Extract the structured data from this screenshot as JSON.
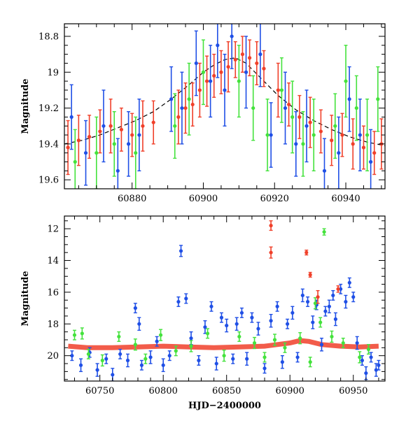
{
  "colors": {
    "blue": "#1f4fe6",
    "green": "#44e23c",
    "red": "#f0402a",
    "black": "#000000"
  },
  "chart_data": [
    {
      "type": "scatter",
      "panel": "top",
      "title": "",
      "xlabel": "",
      "ylabel": "Magnitude",
      "xlim": [
        60861,
        60951
      ],
      "ylim": [
        19.65,
        18.73
      ],
      "y_inverted": true,
      "x_ticks": [
        60880,
        60900,
        60920,
        60940
      ],
      "y_ticks": [
        18.8,
        19,
        19.2,
        19.4,
        19.6
      ],
      "x_tick_labels": [
        "60880",
        "60900",
        "60920",
        "60940"
      ],
      "y_tick_labels": [
        "18.8",
        "19",
        "19.2",
        "19.4",
        "19.6"
      ],
      "grid": false,
      "series": [
        {
          "color_key": "red",
          "x": [
            60862,
            60865,
            60868,
            60871,
            60874,
            60877,
            60880,
            60883,
            60886,
            60893,
            60895,
            60897,
            60899,
            60901,
            60903,
            60905,
            60907,
            60909,
            60911,
            60913,
            60915,
            60917,
            60921,
            60924,
            60927,
            60930,
            60933,
            60936,
            60939,
            60942,
            60945,
            60948,
            60950
          ],
          "y": [
            19.42,
            19.38,
            19.36,
            19.33,
            19.3,
            19.32,
            19.35,
            19.3,
            19.28,
            19.25,
            19.2,
            19.18,
            19.1,
            19.05,
            19.02,
            19.0,
            18.97,
            18.93,
            18.9,
            18.92,
            18.95,
            18.98,
            19.1,
            19.18,
            19.25,
            19.28,
            19.33,
            19.38,
            19.35,
            19.4,
            19.42,
            19.45,
            19.4
          ],
          "err": [
            0.15,
            0.14,
            0.12,
            0.12,
            0.15,
            0.12,
            0.12,
            0.14,
            0.12,
            0.15,
            0.14,
            0.12,
            0.15,
            0.14,
            0.12,
            0.12,
            0.14,
            0.1,
            0.1,
            0.1,
            0.12,
            0.1,
            0.15,
            0.12,
            0.12,
            0.14,
            0.12,
            0.14,
            0.12,
            0.14,
            0.12,
            0.12,
            0.14
          ]
        },
        {
          "color_key": "blue",
          "x": [
            60863,
            60867,
            60872,
            60876,
            60879,
            60882,
            60891,
            60894,
            60898,
            60902,
            60904,
            60906,
            60908,
            60912,
            60916,
            60919,
            60923,
            60926,
            60929,
            60934,
            60938,
            60941,
            60944,
            60947
          ],
          "y": [
            19.25,
            19.45,
            19.3,
            19.55,
            19.4,
            19.35,
            19.15,
            19.2,
            18.95,
            19.05,
            18.85,
            19.1,
            18.8,
            19.0,
            18.9,
            19.35,
            19.2,
            19.4,
            19.3,
            19.55,
            19.45,
            19.15,
            19.35,
            19.5
          ],
          "err": [
            0.18,
            0.18,
            0.2,
            0.18,
            0.18,
            0.2,
            0.18,
            0.2,
            0.18,
            0.2,
            0.18,
            0.2,
            0.18,
            0.2,
            0.18,
            0.18,
            0.2,
            0.18,
            0.2,
            0.18,
            0.2,
            0.18,
            0.2,
            0.18
          ]
        },
        {
          "color_key": "green",
          "x": [
            60864,
            60870,
            60875,
            60881,
            60892,
            60896,
            60900,
            60910,
            60914,
            60918,
            60922,
            60925,
            60928,
            60931,
            60937,
            60940,
            60943,
            60946,
            60949
          ],
          "y": [
            19.5,
            19.45,
            19.4,
            19.45,
            19.3,
            19.15,
            19.0,
            19.05,
            19.2,
            19.35,
            19.1,
            19.25,
            19.4,
            19.35,
            19.3,
            19.05,
            19.2,
            19.35,
            19.15
          ],
          "err": [
            0.18,
            0.2,
            0.18,
            0.2,
            0.18,
            0.2,
            0.18,
            0.2,
            0.18,
            0.2,
            0.18,
            0.2,
            0.18,
            0.2,
            0.18,
            0.2,
            0.18,
            0.2,
            0.18
          ]
        }
      ],
      "model_curve": {
        "style": "dashed",
        "color_key": "black",
        "x": [
          60861,
          60866,
          60871,
          60876,
          60881,
          60886,
          60891,
          60896,
          60900,
          60903,
          60906,
          60909,
          60912,
          60916,
          60921,
          60926,
          60931,
          60936,
          60941,
          60946,
          60951
        ],
        "y": [
          19.4,
          19.38,
          19.35,
          19.31,
          19.27,
          19.22,
          19.15,
          19.07,
          19.0,
          18.96,
          18.93,
          18.92,
          18.95,
          19.03,
          19.13,
          19.21,
          19.27,
          19.32,
          19.36,
          19.39,
          19.41
        ]
      }
    },
    {
      "type": "scatter",
      "panel": "bottom",
      "title": "",
      "xlabel": "HJD−2400000",
      "ylabel": "Magnitude",
      "xlim": [
        60722,
        60975
      ],
      "ylim": [
        21.6,
        11.2
      ],
      "y_inverted": true,
      "x_ticks": [
        60750,
        60800,
        60850,
        60900,
        60950
      ],
      "y_ticks": [
        12,
        14,
        16,
        18,
        20
      ],
      "x_tick_labels": [
        "60750",
        "60800",
        "60850",
        "60900",
        "60950"
      ],
      "y_tick_labels": [
        "12",
        "14",
        "16",
        "18",
        "20"
      ],
      "grid": false,
      "series": [
        {
          "color_key": "blue",
          "x": [
            60728,
            60735,
            60742,
            60748,
            60755,
            60760,
            60766,
            60772,
            60778,
            60781,
            60783,
            60790,
            60795,
            60800,
            60805,
            60812,
            60814,
            60818,
            60822,
            60828,
            60833,
            60838,
            60842,
            60846,
            60850,
            60855,
            60858,
            60862,
            60866,
            60870,
            60875,
            60880,
            60885,
            60890,
            60894,
            60898,
            60902,
            60906,
            60910,
            60914,
            60918,
            60921,
            60925,
            60928,
            60931,
            60934,
            60936,
            60940,
            60944,
            60947,
            60950,
            60953,
            60957,
            60960,
            60964,
            60968,
            60970
          ],
          "y": [
            20.0,
            20.6,
            19.8,
            20.9,
            20.2,
            21.2,
            19.9,
            20.3,
            17.0,
            18.0,
            20.6,
            20.1,
            19.1,
            20.6,
            20.0,
            16.6,
            13.4,
            16.4,
            18.9,
            20.3,
            18.2,
            16.9,
            20.5,
            17.6,
            18.1,
            20.2,
            18.0,
            17.3,
            20.2,
            17.6,
            18.3,
            20.8,
            17.8,
            16.9,
            20.4,
            18.0,
            17.3,
            20.1,
            16.2,
            16.6,
            17.9,
            16.8,
            19.3,
            17.2,
            16.9,
            16.2,
            17.7,
            15.8,
            16.6,
            15.4,
            16.3,
            19.2,
            20.3,
            21.1,
            20.1,
            20.9,
            20.6
          ],
          "err": [
            0.3,
            0.4,
            0.3,
            0.4,
            0.3,
            0.4,
            0.3,
            0.4,
            0.3,
            0.4,
            0.3,
            0.4,
            0.3,
            0.4,
            0.3,
            0.3,
            0.35,
            0.3,
            0.4,
            0.3,
            0.4,
            0.3,
            0.4,
            0.3,
            0.4,
            0.3,
            0.4,
            0.3,
            0.4,
            0.3,
            0.4,
            0.3,
            0.4,
            0.3,
            0.4,
            0.3,
            0.4,
            0.3,
            0.4,
            0.3,
            0.4,
            0.3,
            0.4,
            0.3,
            0.4,
            0.3,
            0.4,
            0.3,
            0.4,
            0.3,
            0.3,
            0.4,
            0.3,
            0.4,
            0.3,
            0.4,
            0.3
          ]
        },
        {
          "color_key": "green",
          "x": [
            60730,
            60736,
            60741,
            60752,
            60765,
            60778,
            60786,
            60798,
            60810,
            60822,
            60835,
            60848,
            60860,
            60872,
            60880,
            60888,
            60896,
            60908,
            60916,
            60920,
            60924,
            60927,
            60933,
            60942,
            60955,
            60962
          ],
          "y": [
            18.7,
            18.6,
            19.9,
            20.3,
            18.8,
            19.3,
            20.2,
            18.7,
            19.7,
            19.4,
            18.6,
            20.0,
            18.8,
            19.2,
            20.1,
            19.0,
            19.5,
            18.9,
            20.4,
            16.7,
            17.9,
            12.2,
            18.8,
            19.2,
            20.1,
            19.6
          ],
          "err": [
            0.3,
            0.35,
            0.3,
            0.35,
            0.3,
            0.35,
            0.3,
            0.35,
            0.3,
            0.35,
            0.3,
            0.35,
            0.3,
            0.35,
            0.3,
            0.35,
            0.3,
            0.35,
            0.3,
            0.35,
            0.3,
            0.2,
            0.35,
            0.3,
            0.35,
            0.3
          ]
        },
        {
          "color_key": "red",
          "x": [
            60885,
            60885,
            60913,
            60916,
            60922,
            60938
          ],
          "y": [
            11.8,
            13.5,
            13.5,
            14.9,
            16.3,
            15.8
          ],
          "err": [
            0.3,
            0.35,
            0.15,
            0.15,
            0.4,
            0.2
          ]
        }
      ],
      "baseline_red": {
        "color_key": "red",
        "description_free": true,
        "x": [
          60725,
          60740,
          60760,
          60780,
          60800,
          60820,
          60840,
          60860,
          60880,
          60890,
          60900,
          60908,
          60915,
          60925,
          60940,
          60955,
          60970
        ],
        "y": [
          19.4,
          19.5,
          19.5,
          19.45,
          19.4,
          19.45,
          19.5,
          19.45,
          19.4,
          19.3,
          19.2,
          19.05,
          19.1,
          19.3,
          19.4,
          19.45,
          19.4
        ]
      }
    }
  ]
}
